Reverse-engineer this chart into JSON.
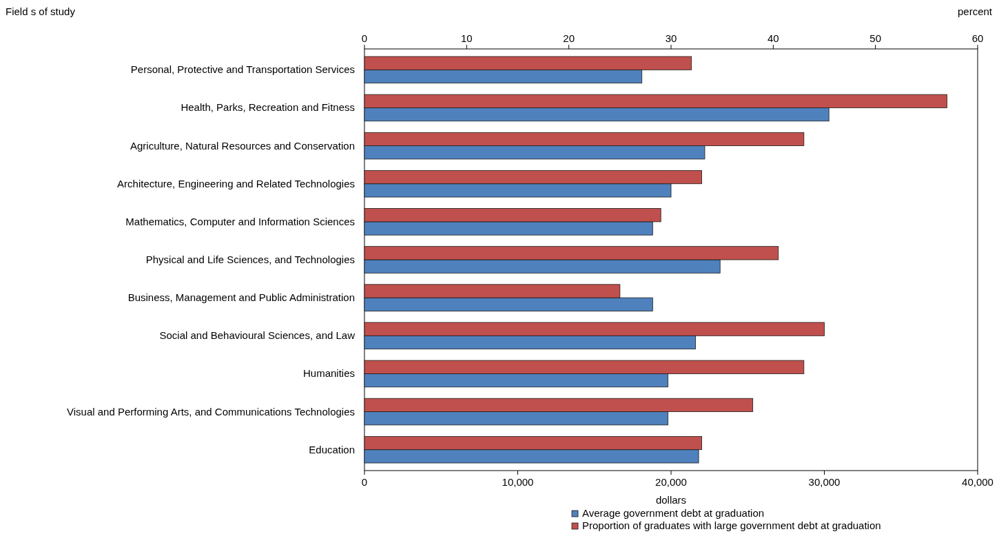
{
  "chart_data": {
    "type": "bar",
    "orientation": "horizontal",
    "ylabel": "Field s of study",
    "xlabel": "dollars",
    "x2label": "percent",
    "categories": [
      "Personal, Protective and Transportation Services",
      "Health, Parks, Recreation and Fitness",
      "Agriculture, Natural Resources and Conservation",
      "Architecture, Engineering and Related Technologies",
      "Mathematics, Computer and Information Sciences",
      "Physical and Life Sciences, and Technologies",
      "Business, Management and Public Administration",
      "Social and Behavioural Sciences, and Law",
      "Humanities",
      "Visual and Performing Arts, and Communications Technologies",
      "Education"
    ],
    "series": [
      {
        "name": "Average government debt at graduation",
        "color": "#4f81bd",
        "values": [
          18100,
          30300,
          22200,
          20000,
          18800,
          23200,
          18800,
          21600,
          19800,
          19800,
          21800
        ]
      },
      {
        "name": "Proportion of graduates with large government debt at graduation",
        "color": "#c0504d",
        "axis": "x2",
        "values": [
          32,
          57,
          43,
          33,
          29,
          40.5,
          25,
          45,
          43,
          38,
          33
        ]
      }
    ],
    "xlim": [
      0,
      40000
    ],
    "xticks": [
      {
        "value": 0,
        "label": "0"
      },
      {
        "value": 10000,
        "label": "10,000"
      },
      {
        "value": 20000,
        "label": "20,000"
      },
      {
        "value": 30000,
        "label": "30,000"
      },
      {
        "value": 40000,
        "label": "40,000"
      }
    ],
    "x2lim": [
      0,
      60
    ],
    "x2ticks": [
      0,
      10,
      20,
      30,
      40,
      50,
      60
    ],
    "legend": "bottom",
    "grid": false
  }
}
